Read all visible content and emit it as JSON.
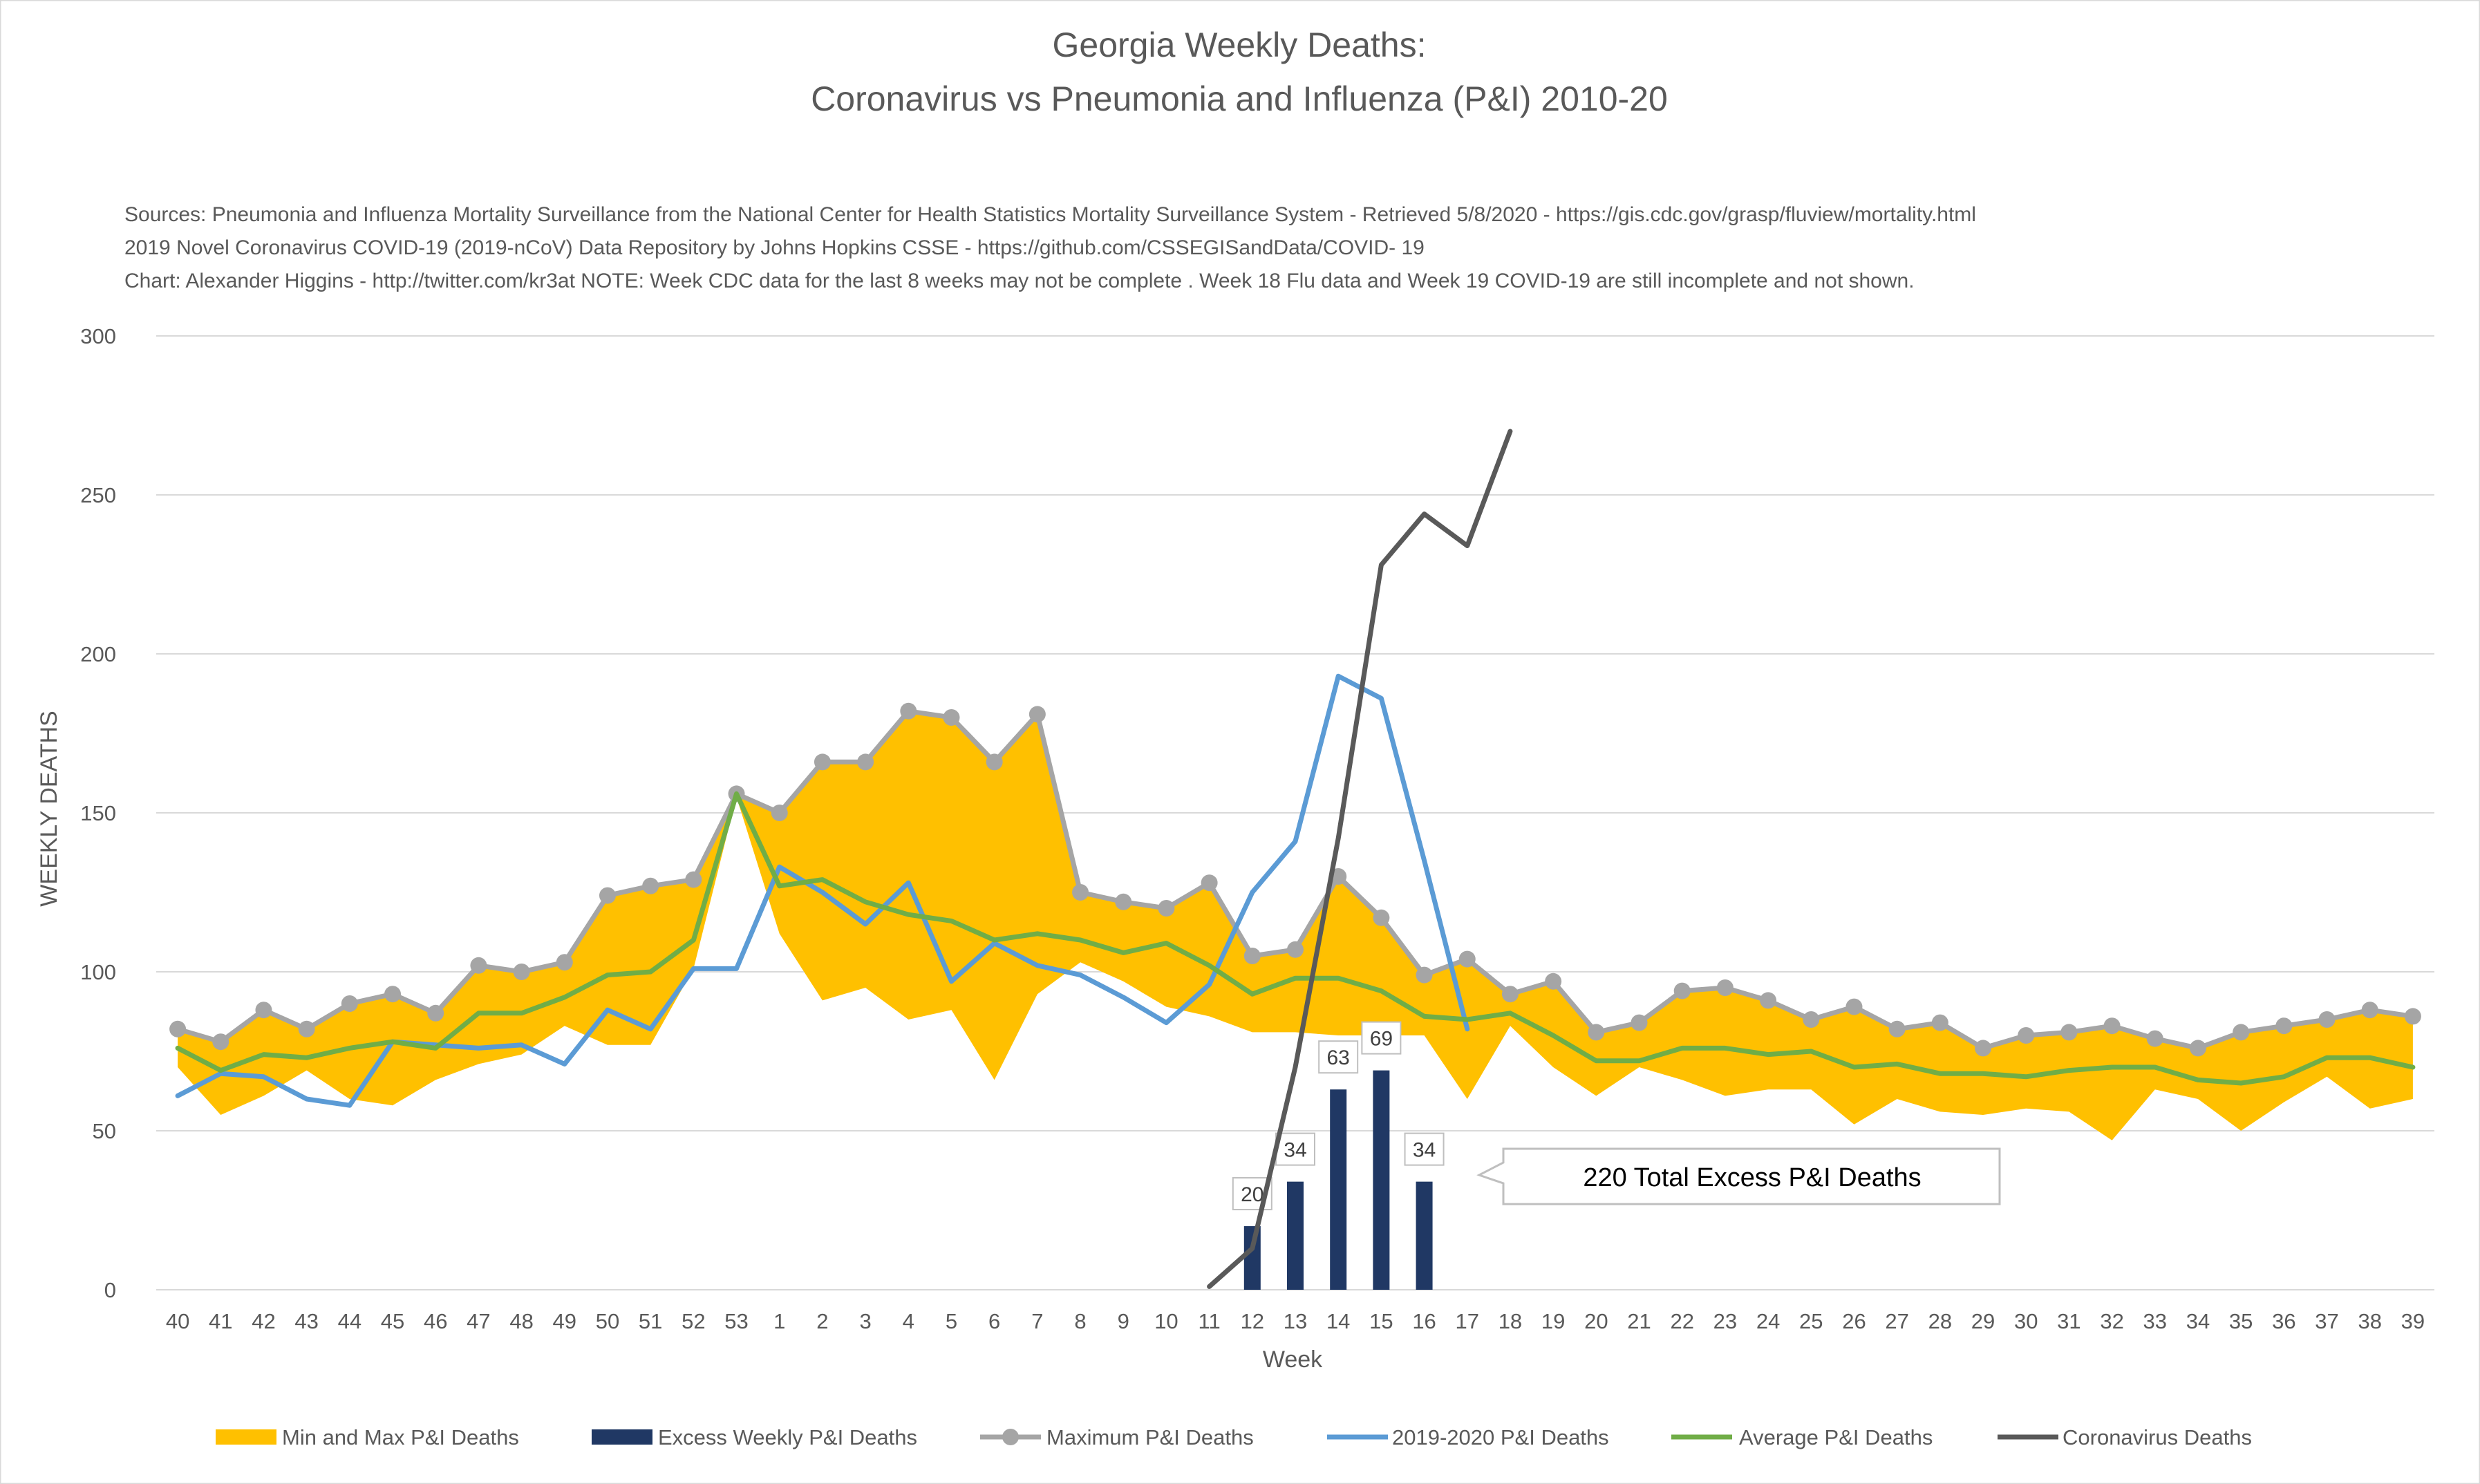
{
  "chart_data": {
    "type": "line",
    "title_line1": "Georgia Weekly Deaths:",
    "title_line2": "Coronavirus vs Pneumonia and Influenza (P&I) 2010-20",
    "sources": [
      "Sources: Pneumonia and Influenza Mortality Surveillance from the National Center for Health Statistics Mortality Surveillance System - Retrieved 5/8/2020 - https://gis.cdc.gov/grasp/fluview/mortality.html",
      "2019 Novel Coronavirus COVID-19 (2019-nCoV) Data Repository by Johns Hopkins CSSE - https://github.com/CSSEGISandData/COVID- 19",
      "Chart: Alexander Higgins - http://twitter.com/kr3at   NOTE: Week CDC data for the last 8 weeks may not be complete . Week 18 Flu data and Week 19 COVID-19 are still incomplete and not shown."
    ],
    "xlabel": "Week",
    "ylabel": "WEEKLY DEATHS",
    "ylim": [
      0,
      300
    ],
    "yticks": [
      0,
      50,
      100,
      150,
      200,
      250,
      300
    ],
    "categories": [
      "40",
      "41",
      "42",
      "43",
      "44",
      "45",
      "46",
      "47",
      "48",
      "49",
      "50",
      "51",
      "52",
      "53",
      "1",
      "2",
      "3",
      "4",
      "5",
      "6",
      "7",
      "8",
      "9",
      "10",
      "11",
      "12",
      "13",
      "14",
      "15",
      "16",
      "17",
      "18",
      "19",
      "20",
      "21",
      "22",
      "23",
      "24",
      "25",
      "26",
      "27",
      "28",
      "29",
      "30",
      "31",
      "32",
      "33",
      "34",
      "35",
      "36",
      "37",
      "38",
      "39"
    ],
    "range_series": {
      "name": "Min and Max P&I Deaths",
      "color": "#FFC000",
      "min": [
        70,
        55,
        61,
        69,
        60,
        58,
        66,
        71,
        74,
        83,
        77,
        77,
        101,
        155,
        112,
        91,
        95,
        85,
        88,
        66,
        93,
        103,
        97,
        89,
        86,
        81,
        81,
        80,
        80,
        80,
        60,
        83,
        70,
        61,
        70,
        66,
        61,
        63,
        63,
        52,
        60,
        56,
        55,
        57,
        56,
        47,
        63,
        60,
        50,
        59,
        67,
        57,
        60
      ],
      "max": [
        82,
        78,
        88,
        82,
        90,
        93,
        87,
        102,
        100,
        103,
        124,
        127,
        129,
        156,
        150,
        166,
        166,
        182,
        180,
        166,
        181,
        125,
        122,
        120,
        128,
        105,
        107,
        130,
        117,
        99,
        104,
        93,
        97,
        81,
        84,
        94,
        95,
        91,
        85,
        89,
        82,
        84,
        76,
        80,
        81,
        83,
        79,
        76,
        81,
        83,
        85,
        88,
        86
      ]
    },
    "series": [
      {
        "name": "Excess Weekly P&I Deaths",
        "type": "bar",
        "color": "#203864",
        "values": [
          null,
          null,
          null,
          null,
          null,
          null,
          null,
          null,
          null,
          null,
          null,
          null,
          null,
          null,
          null,
          null,
          null,
          null,
          null,
          null,
          null,
          null,
          null,
          null,
          null,
          20,
          34,
          63,
          69,
          34,
          null,
          null,
          null,
          null,
          null,
          null,
          null,
          null,
          null,
          null,
          null,
          null,
          null,
          null,
          null,
          null,
          null,
          null,
          null,
          null,
          null,
          null,
          null
        ],
        "labels": [
          "20",
          "34",
          "63",
          "69",
          "34"
        ]
      },
      {
        "name": "Maximum P&I Deaths",
        "type": "line-marker",
        "color": "#A5A5A5",
        "values": [
          82,
          78,
          88,
          82,
          90,
          93,
          87,
          102,
          100,
          103,
          124,
          127,
          129,
          156,
          150,
          166,
          166,
          182,
          180,
          166,
          181,
          125,
          122,
          120,
          128,
          105,
          107,
          130,
          117,
          99,
          104,
          93,
          97,
          81,
          84,
          94,
          95,
          91,
          85,
          89,
          82,
          84,
          76,
          80,
          81,
          83,
          79,
          76,
          81,
          83,
          85,
          88,
          86
        ]
      },
      {
        "name": "2019-2020 P&I Deaths",
        "type": "line",
        "color": "#5B9BD5",
        "values": [
          61,
          68,
          67,
          60,
          58,
          78,
          77,
          76,
          77,
          71,
          88,
          82,
          101,
          101,
          133,
          125,
          115,
          128,
          97,
          109,
          102,
          99,
          92,
          84,
          96,
          125,
          141,
          193,
          186,
          135,
          82,
          null,
          null,
          null,
          null,
          null,
          null,
          null,
          null,
          null,
          null,
          null,
          null,
          null,
          null,
          null,
          null,
          null,
          null,
          null,
          null,
          null,
          null
        ]
      },
      {
        "name": "Average P&I Deaths",
        "type": "line",
        "color": "#70AD47",
        "values": [
          76,
          69,
          74,
          73,
          76,
          78,
          76,
          87,
          87,
          92,
          99,
          100,
          110,
          156,
          127,
          129,
          122,
          118,
          116,
          110,
          112,
          110,
          106,
          109,
          102,
          93,
          98,
          98,
          94,
          86,
          85,
          87,
          80,
          72,
          72,
          76,
          76,
          74,
          75,
          70,
          71,
          68,
          68,
          67,
          69,
          70,
          70,
          66,
          65,
          67,
          73,
          73,
          70
        ]
      },
      {
        "name": "Coronavirus Deaths",
        "type": "line",
        "color": "#595959",
        "values": [
          null,
          null,
          null,
          null,
          null,
          null,
          null,
          null,
          null,
          null,
          null,
          null,
          null,
          null,
          null,
          null,
          null,
          null,
          null,
          null,
          null,
          null,
          null,
          null,
          1,
          13,
          70,
          142,
          228,
          244,
          234,
          270,
          null,
          null,
          null,
          null,
          null,
          null,
          null,
          null,
          null,
          null,
          null,
          null,
          null,
          null,
          null,
          null,
          null,
          null,
          null,
          null,
          null
        ]
      }
    ],
    "callout": "220 Total Excess P&I Deaths",
    "legend_position": "bottom",
    "grid": true
  }
}
